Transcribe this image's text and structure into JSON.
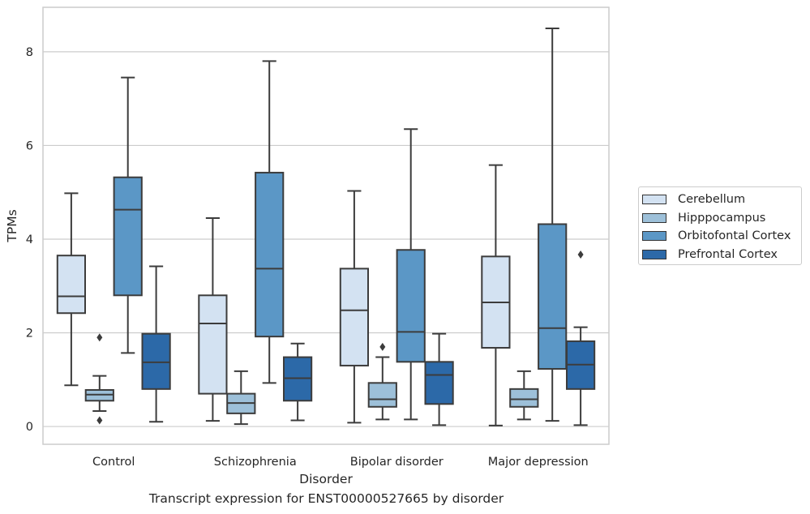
{
  "chart_data": {
    "type": "box",
    "xlabel": "Disorder",
    "ylabel": "TPMs",
    "caption": "Transcript expression for ENST00000527665 by disorder",
    "categories": [
      "Control",
      "Schizophrenia",
      "Bipolar disorder",
      "Major depression"
    ],
    "ylim": [
      -0.38,
      8.95
    ],
    "yticks": [
      "0",
      "2",
      "4",
      "6",
      "8"
    ],
    "grid": "horizontal",
    "legend_position": "right",
    "series": [
      {
        "name": "Cerebellum",
        "color": "#d3e2f2",
        "boxes": [
          {
            "whisker_low": 0.88,
            "q1": 2.42,
            "median": 2.78,
            "q3": 3.65,
            "whisker_high": 4.98,
            "outliers": []
          },
          {
            "whisker_low": 0.12,
            "q1": 0.7,
            "median": 2.2,
            "q3": 2.8,
            "whisker_high": 4.45,
            "outliers": []
          },
          {
            "whisker_low": 0.08,
            "q1": 1.3,
            "median": 2.48,
            "q3": 3.37,
            "whisker_high": 5.03,
            "outliers": []
          },
          {
            "whisker_low": 0.02,
            "q1": 1.68,
            "median": 2.65,
            "q3": 3.63,
            "whisker_high": 5.58,
            "outliers": []
          }
        ]
      },
      {
        "name": "Hipppocampus",
        "color": "#9dc0d9",
        "boxes": [
          {
            "whisker_low": 0.33,
            "q1": 0.55,
            "median": 0.68,
            "q3": 0.78,
            "whisker_high": 1.08,
            "outliers": [
              1.9,
              0.13
            ]
          },
          {
            "whisker_low": 0.05,
            "q1": 0.28,
            "median": 0.5,
            "q3": 0.7,
            "whisker_high": 1.18,
            "outliers": []
          },
          {
            "whisker_low": 0.15,
            "q1": 0.42,
            "median": 0.58,
            "q3": 0.93,
            "whisker_high": 1.48,
            "outliers": [
              1.7
            ]
          },
          {
            "whisker_low": 0.15,
            "q1": 0.42,
            "median": 0.58,
            "q3": 0.8,
            "whisker_high": 1.18,
            "outliers": []
          }
        ]
      },
      {
        "name": "Orbitofontal Cortex",
        "color": "#5b97c6",
        "boxes": [
          {
            "whisker_low": 1.57,
            "q1": 2.8,
            "median": 4.63,
            "q3": 5.32,
            "whisker_high": 7.45,
            "outliers": []
          },
          {
            "whisker_low": 0.93,
            "q1": 1.92,
            "median": 3.37,
            "q3": 5.42,
            "whisker_high": 7.8,
            "outliers": []
          },
          {
            "whisker_low": 0.15,
            "q1": 1.38,
            "median": 2.02,
            "q3": 3.77,
            "whisker_high": 6.35,
            "outliers": []
          },
          {
            "whisker_low": 0.12,
            "q1": 1.23,
            "median": 2.1,
            "q3": 4.32,
            "whisker_high": 8.5,
            "outliers": []
          }
        ]
      },
      {
        "name": "Prefrontal Cortex",
        "color": "#2c69a8",
        "boxes": [
          {
            "whisker_low": 0.1,
            "q1": 0.8,
            "median": 1.37,
            "q3": 1.98,
            "whisker_high": 3.42,
            "outliers": []
          },
          {
            "whisker_low": 0.13,
            "q1": 0.55,
            "median": 1.03,
            "q3": 1.48,
            "whisker_high": 1.77,
            "outliers": []
          },
          {
            "whisker_low": 0.03,
            "q1": 0.48,
            "median": 1.1,
            "q3": 1.38,
            "whisker_high": 1.98,
            "outliers": []
          },
          {
            "whisker_low": 0.03,
            "q1": 0.8,
            "median": 1.32,
            "q3": 1.82,
            "whisker_high": 2.12,
            "outliers": [
              3.67
            ]
          }
        ]
      }
    ]
  }
}
